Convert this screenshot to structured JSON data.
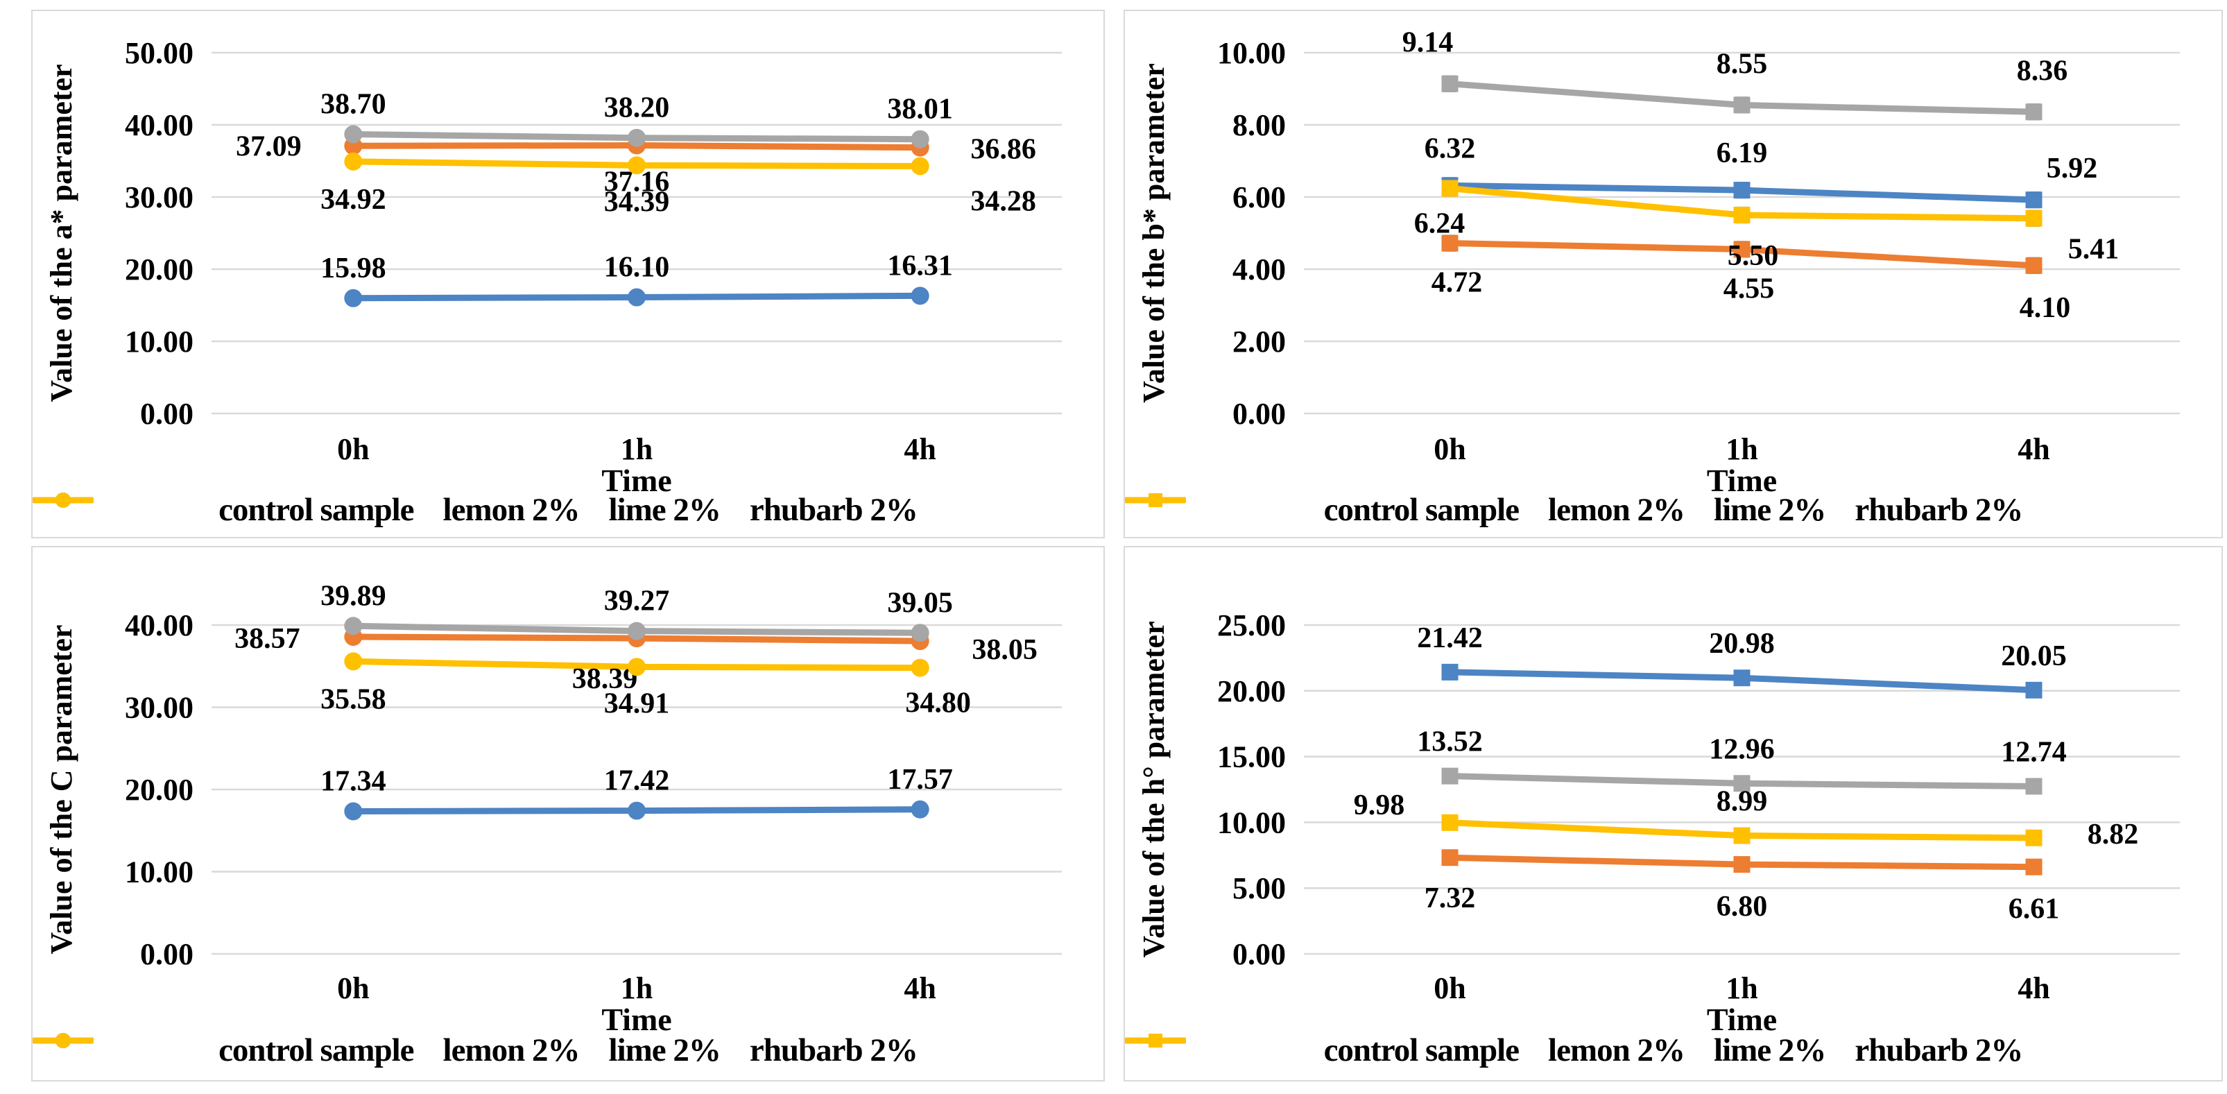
{
  "figure": {
    "background": "#FFFFFF",
    "panel_border_color": "#D9D9D9",
    "gridline_color": "#D9D9D9",
    "error_bar_color": "#8C8C8C",
    "text_color": "#000000"
  },
  "colors": {
    "control": "#4D84C4",
    "lemon": "#ED7D31",
    "lime": "#A6A6A6",
    "rhubarb": "#FFC000"
  },
  "chart_data": [
    {
      "type": "line",
      "panel": "top-left",
      "title": "",
      "ylabel": "Value of the a* parameter",
      "xlabel": "Time",
      "categories": [
        "0h",
        "1h",
        "4h"
      ],
      "yticks": [
        "0.00",
        "10.00",
        "20.00",
        "30.00",
        "40.00",
        "50.00"
      ],
      "ylim": [
        0,
        50
      ],
      "grid": true,
      "legend_position": "bottom",
      "marker": "circle",
      "error_bar": 0,
      "series": [
        {
          "name": "control sample",
          "color_key": "control",
          "values": [
            15.98,
            16.1,
            16.31
          ],
          "labels": [
            "15.98",
            "16.10",
            "16.31"
          ],
          "label_offsets": [
            [
              0,
              -30
            ],
            [
              0,
              -30
            ],
            [
              0,
              -30
            ]
          ]
        },
        {
          "name": "lemon 2%",
          "color_key": "lemon",
          "values": [
            37.09,
            37.16,
            36.86
          ],
          "labels": [
            "37.09",
            "37.16",
            "36.86"
          ],
          "label_offsets": [
            [
              -122,
              14
            ],
            [
              0,
              66
            ],
            [
              120,
              16
            ]
          ]
        },
        {
          "name": "lime 2%",
          "color_key": "lime",
          "values": [
            38.7,
            38.2,
            38.01
          ],
          "labels": [
            "38.70",
            "38.20",
            "38.01"
          ],
          "label_offsets": [
            [
              0,
              -30
            ],
            [
              0,
              -30
            ],
            [
              0,
              -30
            ]
          ]
        },
        {
          "name": "rhubarb 2%",
          "color_key": "rhubarb",
          "values": [
            34.92,
            34.39,
            34.28
          ],
          "labels": [
            "34.92",
            "34.39",
            "34.28"
          ],
          "label_offsets": [
            [
              0,
              68
            ],
            [
              0,
              66
            ],
            [
              120,
              64
            ]
          ]
        }
      ]
    },
    {
      "type": "line",
      "panel": "top-right",
      "title": "",
      "ylabel": "Value of the b* parameter",
      "xlabel": "Time",
      "categories": [
        "0h",
        "1h",
        "4h"
      ],
      "yticks": [
        "0.00",
        "2.00",
        "4.00",
        "6.00",
        "8.00",
        "10.00"
      ],
      "ylim": [
        0,
        10
      ],
      "grid": true,
      "legend_position": "bottom",
      "marker": "square",
      "error_bar": 0.2,
      "series": [
        {
          "name": "control sample",
          "color_key": "control",
          "values": [
            6.32,
            6.19,
            5.92
          ],
          "labels": [
            "6.32",
            "6.19",
            "5.92"
          ],
          "label_offsets": [
            [
              0,
              -40
            ],
            [
              0,
              -40
            ],
            [
              55,
              -32
            ]
          ]
        },
        {
          "name": "lemon 2%",
          "color_key": "lemon",
          "values": [
            4.72,
            4.55,
            4.1
          ],
          "labels": [
            "4.72",
            "4.55",
            "4.10"
          ],
          "label_offsets": [
            [
              10,
              70
            ],
            [
              10,
              70
            ],
            [
              16,
              74
            ]
          ]
        },
        {
          "name": "lime 2%",
          "color_key": "lime",
          "values": [
            9.14,
            8.55,
            8.36
          ],
          "labels": [
            "9.14",
            "8.55",
            "8.36"
          ],
          "label_offsets": [
            [
              -32,
              -46
            ],
            [
              0,
              -46
            ],
            [
              12,
              -46
            ]
          ]
        },
        {
          "name": "rhubarb 2%",
          "color_key": "rhubarb",
          "values": [
            6.24,
            5.5,
            5.41
          ],
          "labels": [
            "6.24",
            "5.50",
            "5.41"
          ],
          "label_offsets": [
            [
              -15,
              64
            ],
            [
              16,
              72
            ],
            [
              86,
              58
            ]
          ]
        }
      ]
    },
    {
      "type": "line",
      "panel": "bottom-left",
      "title": "",
      "ylabel": "Value of the C parameter",
      "xlabel": "Time",
      "categories": [
        "0h",
        "1h",
        "4h"
      ],
      "yticks": [
        "0.00",
        "10.00",
        "20.00",
        "30.00",
        "40.00"
      ],
      "ylim": [
        0,
        40
      ],
      "grid": true,
      "legend_position": "bottom",
      "marker": "circle",
      "error_bar": 0,
      "series": [
        {
          "name": "control sample",
          "color_key": "control",
          "values": [
            17.34,
            17.42,
            17.57
          ],
          "labels": [
            "17.34",
            "17.42",
            "17.57"
          ],
          "label_offsets": [
            [
              0,
              -30
            ],
            [
              0,
              -30
            ],
            [
              0,
              -30
            ]
          ]
        },
        {
          "name": "lemon 2%",
          "color_key": "lemon",
          "values": [
            38.57,
            38.39,
            38.05
          ],
          "labels": [
            "38.57",
            "38.39",
            "38.05"
          ],
          "label_offsets": [
            [
              -124,
              16
            ],
            [
              -46,
              72
            ],
            [
              122,
              26
            ]
          ]
        },
        {
          "name": "lime 2%",
          "color_key": "lime",
          "values": [
            39.89,
            39.27,
            39.05
          ],
          "labels": [
            "39.89",
            "39.27",
            "39.05"
          ],
          "label_offsets": [
            [
              0,
              -30
            ],
            [
              0,
              -30
            ],
            [
              0,
              -30
            ]
          ]
        },
        {
          "name": "rhubarb 2%",
          "color_key": "rhubarb",
          "values": [
            35.58,
            34.91,
            34.8
          ],
          "labels": [
            "35.58",
            "34.91",
            "34.80"
          ],
          "label_offsets": [
            [
              0,
              68
            ],
            [
              0,
              66
            ],
            [
              26,
              64
            ]
          ]
        }
      ]
    },
    {
      "type": "line",
      "panel": "bottom-right",
      "title": "",
      "ylabel": "Value of the h° parameter",
      "xlabel": "Time",
      "categories": [
        "0h",
        "1h",
        "4h"
      ],
      "yticks": [
        "0.00",
        "5.00",
        "10.00",
        "15.00",
        "20.00",
        "25.00"
      ],
      "ylim": [
        0,
        25
      ],
      "grid": true,
      "legend_position": "bottom",
      "marker": "square",
      "error_bar": 0.25,
      "series": [
        {
          "name": "control sample",
          "color_key": "control",
          "values": [
            21.42,
            20.98,
            20.05
          ],
          "labels": [
            "21.42",
            "20.98",
            "20.05"
          ],
          "label_offsets": [
            [
              0,
              -36
            ],
            [
              0,
              -36
            ],
            [
              0,
              -36
            ]
          ]
        },
        {
          "name": "lemon 2%",
          "color_key": "lemon",
          "values": [
            7.32,
            6.8,
            6.61
          ],
          "labels": [
            "7.32",
            "6.80",
            "6.61"
          ],
          "label_offsets": [
            [
              0,
              72
            ],
            [
              0,
              74
            ],
            [
              0,
              74
            ]
          ]
        },
        {
          "name": "lime 2%",
          "color_key": "lime",
          "values": [
            13.52,
            12.96,
            12.74
          ],
          "labels": [
            "13.52",
            "12.96",
            "12.74"
          ],
          "label_offsets": [
            [
              0,
              -36
            ],
            [
              0,
              -36
            ],
            [
              0,
              -36
            ]
          ]
        },
        {
          "name": "rhubarb 2%",
          "color_key": "rhubarb",
          "values": [
            9.98,
            8.99,
            8.82
          ],
          "labels": [
            "9.98",
            "8.99",
            "8.82"
          ],
          "label_offsets": [
            [
              -102,
              -12
            ],
            [
              0,
              -36
            ],
            [
              114,
              8
            ]
          ]
        }
      ]
    }
  ]
}
